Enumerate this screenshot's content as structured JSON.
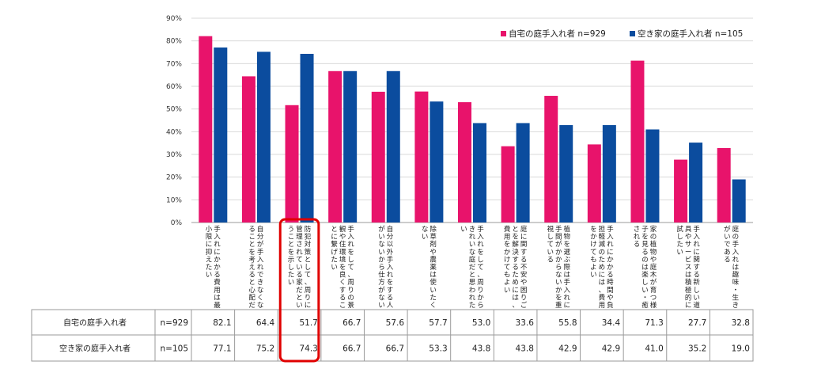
{
  "chart_data": {
    "type": "bar",
    "ylim": [
      0,
      90
    ],
    "y_ticks": [
      "0%",
      "10%",
      "20%",
      "30%",
      "40%",
      "50%",
      "60%",
      "70%",
      "80%",
      "90%"
    ],
    "categories": [
      "手入れにかかる費用は最小限に抑えたい",
      "自分が手入れできなくなることを考えると心配だ",
      "防犯対策として、周りに管理されている家だということを示したい",
      "手入れをして、周りの景観や住環境を良くすることに繋げたい",
      "自分以外手入れをする人がいないから仕方がない",
      "除草剤や農薬は使いたくない",
      "手入れをして、周りからきれいな庭だと思われたい",
      "庭に関する不安や困りごとを解決するためには、費用をかけてもよい",
      "植物を選ぶ際は手入れに手間がかからないかを重視している",
      "手入れにかかる時間や負担軽減のためには、費用をかけてもよい",
      "家の植物や庭木が育つ様子を見るのは楽しい・癒される",
      "手入れに関する新しい道具やサービスは積極的に試したい",
      "庭の手入れは趣味・生きがいである"
    ],
    "series": [
      {
        "name": "自宅の庭手入れ者",
        "n": "n=929",
        "color": "#e8136b",
        "values": [
          82.1,
          64.4,
          51.7,
          66.7,
          57.6,
          57.7,
          53.0,
          33.6,
          55.8,
          34.4,
          71.3,
          27.7,
          32.8
        ],
        "labels": [
          "82.1",
          "64.4",
          "51.7",
          "66.7",
          "57.6",
          "57.7",
          "53.0",
          "33.6",
          "55.8",
          "34.4",
          "71.3",
          "27.7",
          "32.8"
        ]
      },
      {
        "name": "空き家の庭手入れ者",
        "n": "n=105",
        "color": "#0b4c9e",
        "values": [
          77.1,
          75.2,
          74.3,
          66.7,
          66.7,
          53.3,
          43.8,
          43.8,
          42.9,
          42.9,
          41.0,
          35.2,
          19.0
        ],
        "labels": [
          "77.1",
          "75.2",
          "74.3",
          "66.7",
          "66.7",
          "53.3",
          "43.8",
          "43.8",
          "42.9",
          "42.9",
          "41.0",
          "35.2",
          "19.0"
        ]
      }
    ],
    "legend": [
      {
        "label": "自宅の庭手入れ者 n=929"
      },
      {
        "label": "空き家の庭手入れ者 n=105"
      }
    ],
    "legend_position": "top-right",
    "highlight_category_index": 2,
    "highlight_color": "#e00000"
  }
}
